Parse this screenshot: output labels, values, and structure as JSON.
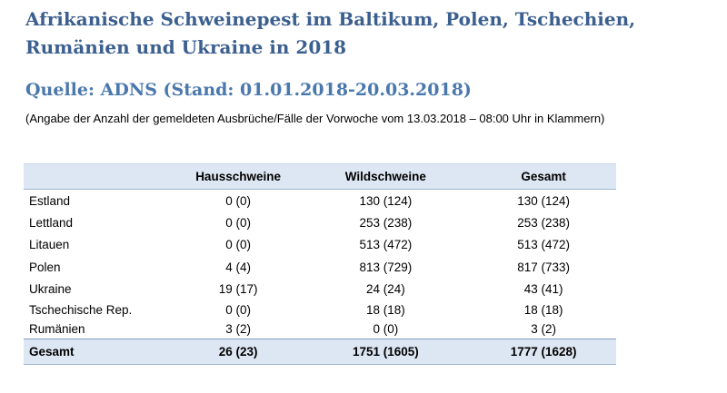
{
  "title": "Afrikanische Schweinepest im Baltikum, Polen, Tschechien, Rumänien und Ukraine in 2018",
  "source": "Quelle: ADNS (Stand:  01.01.2018-20.03.2018)",
  "note": "(Angabe der Anzahl der gemeldeten Ausbrüche/Fälle der Vorwoche vom 13.03.2018 – 08:00 Uhr in Klammern)",
  "table": {
    "headers": [
      "",
      "Hausschweine",
      "Wildschweine",
      "Gesamt"
    ],
    "rows": [
      [
        "Estland",
        "0 (0)",
        "130 (124)",
        "130 (124)"
      ],
      [
        "Lettland",
        "0 (0)",
        "253 (238)",
        "253 (238)"
      ],
      [
        "Litauen",
        "0 (0)",
        "513 (472)",
        "513 (472)"
      ],
      [
        "Polen",
        "4 (4)",
        "813 (729)",
        "817 (733)"
      ],
      [
        "Ukraine",
        "19 (17)",
        "24 (24)",
        "43 (41)"
      ],
      [
        "Tschechische Rep.",
        "0 (0)",
        "18 (18)",
        "18 (18)"
      ],
      [
        "Rumänien",
        "3 (2)",
        "0 (0)",
        "3 (2)"
      ]
    ],
    "total": [
      "Gesamt",
      "26 (23)",
      "1751 (1605)",
      "1777 (1628)"
    ]
  },
  "colors": {
    "title": "#3b5f8f",
    "subtitle": "#4a78ad",
    "header_bg": "#dde7f3"
  }
}
